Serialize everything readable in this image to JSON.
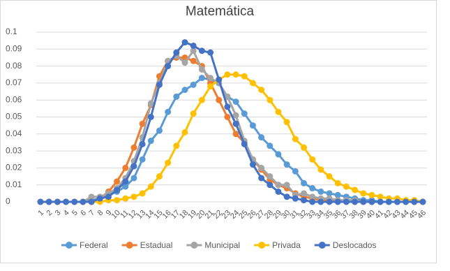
{
  "chart_data": {
    "type": "line",
    "title": "Matemática",
    "categories": [
      "1",
      "2",
      "3",
      "4",
      "5",
      "6",
      "7",
      "8",
      "9",
      "10",
      "11",
      "12",
      "13",
      "14",
      "15",
      "16",
      "17",
      "18",
      "19",
      "20",
      "21",
      "22",
      "23",
      "24",
      "25",
      "26",
      "27",
      "28",
      "29",
      "30",
      "31",
      "32",
      "33",
      "34",
      "35",
      "36",
      "37",
      "38",
      "39",
      "40",
      "41",
      "42",
      "43",
      "44",
      "45",
      "46"
    ],
    "ylim": [
      0,
      0.1
    ],
    "yticks": [
      0,
      0.01,
      0.02,
      0.03,
      0.04,
      0.05,
      0.06,
      0.07,
      0.08,
      0.09,
      0.1
    ],
    "grid": true,
    "legend": "bottom",
    "series": [
      {
        "name": "Federal",
        "color": "#5b9bd5",
        "values": [
          0,
          0,
          0,
          0,
          0,
          0,
          0.001,
          0.002,
          0.004,
          0.006,
          0.009,
          0.014,
          0.025,
          0.036,
          0.042,
          0.053,
          0.062,
          0.066,
          0.069,
          0.073,
          0.072,
          0.07,
          0.062,
          0.059,
          0.052,
          0.045,
          0.038,
          0.033,
          0.028,
          0.022,
          0.018,
          0.011,
          0.008,
          0.006,
          0.005,
          0.004,
          0.003,
          0.002,
          0.001,
          0.001,
          0,
          0,
          0,
          0,
          0,
          0
        ]
      },
      {
        "name": "Estadual",
        "color": "#ed7d31",
        "values": [
          0,
          0,
          0,
          0,
          0,
          0,
          0,
          0.002,
          0.006,
          0.012,
          0.02,
          0.032,
          0.046,
          0.057,
          0.074,
          0.083,
          0.085,
          0.085,
          0.083,
          0.08,
          0.07,
          0.06,
          0.05,
          0.04,
          0.035,
          0.025,
          0.019,
          0.013,
          0.01,
          0.008,
          0.005,
          0.003,
          0.002,
          0.001,
          0.001,
          0.001,
          0,
          0,
          0,
          0,
          0,
          0,
          0,
          0,
          0,
          0
        ]
      },
      {
        "name": "Municipal",
        "color": "#a5a5a5",
        "values": [
          0,
          0,
          0,
          0,
          0,
          0,
          0.003,
          0.003,
          0.005,
          0.008,
          0.014,
          0.024,
          0.038,
          0.058,
          0.07,
          0.083,
          0.086,
          0.082,
          0.089,
          0.078,
          0.073,
          0.07,
          0.062,
          0.051,
          0.036,
          0.025,
          0.02,
          0.015,
          0.01,
          0.01,
          0.004,
          0.005,
          0.003,
          0.002,
          0.002,
          0.001,
          0.001,
          0.001,
          0,
          0,
          0,
          0,
          0,
          0,
          0,
          0
        ]
      },
      {
        "name": "Privada",
        "color": "#ffc000",
        "values": [
          0,
          0,
          0,
          0,
          0,
          0,
          0,
          0,
          0.001,
          0.001,
          0.002,
          0.003,
          0.005,
          0.009,
          0.015,
          0.023,
          0.033,
          0.041,
          0.052,
          0.06,
          0.068,
          0.072,
          0.075,
          0.075,
          0.074,
          0.07,
          0.066,
          0.06,
          0.053,
          0.047,
          0.037,
          0.032,
          0.025,
          0.019,
          0.015,
          0.011,
          0.009,
          0.007,
          0.005,
          0.004,
          0.003,
          0.002,
          0.002,
          0.001,
          0.001,
          0
        ]
      },
      {
        "name": "Deslocados",
        "color": "#4472c4",
        "values": [
          0,
          0,
          0,
          0,
          0,
          0,
          0,
          0.002,
          0.003,
          0.007,
          0.012,
          0.021,
          0.034,
          0.05,
          0.069,
          0.08,
          0.088,
          0.094,
          0.092,
          0.089,
          0.088,
          0.072,
          0.056,
          0.046,
          0.034,
          0.022,
          0.014,
          0.01,
          0.006,
          0.003,
          0.002,
          0.001,
          0,
          0,
          0,
          0,
          0,
          0,
          0,
          0,
          0,
          0,
          0,
          0,
          0,
          0
        ]
      }
    ]
  }
}
